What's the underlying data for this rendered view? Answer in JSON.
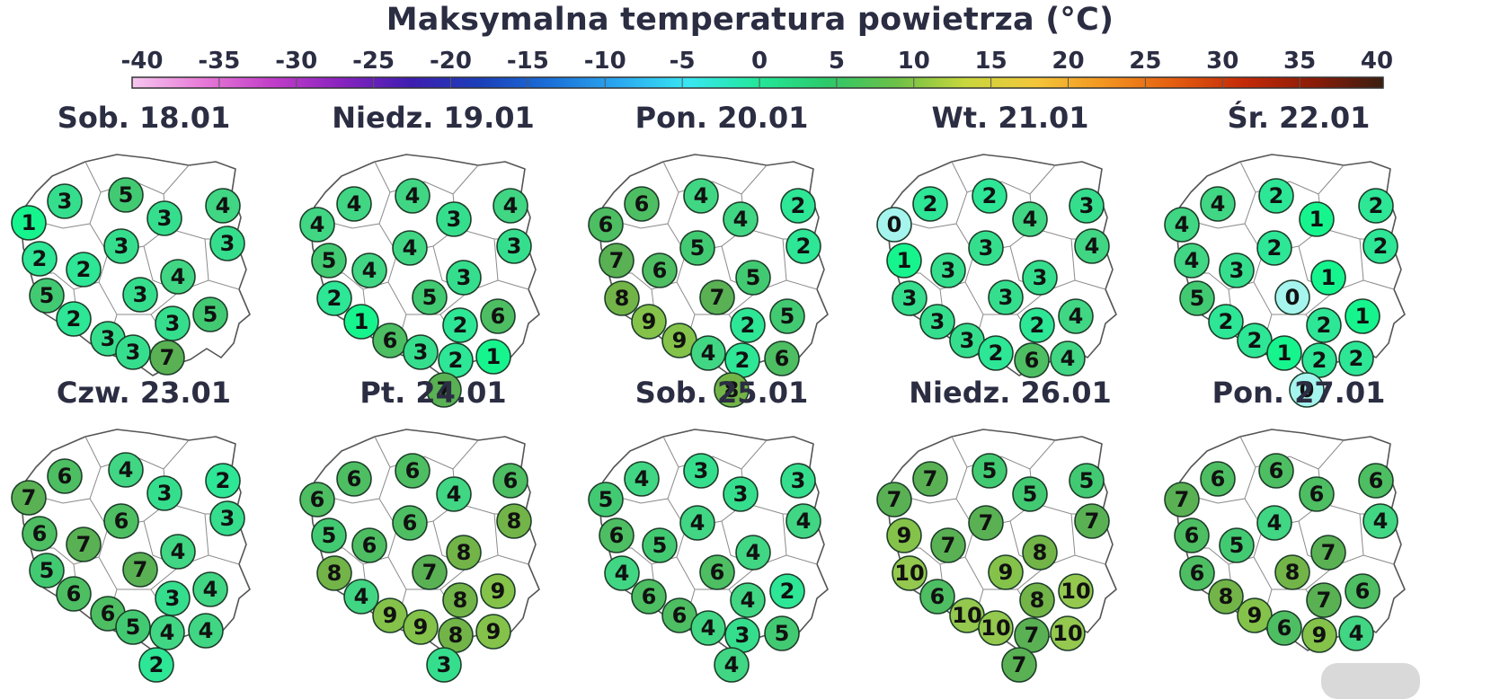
{
  "title": "Maksymalna temperatura powietrza (°C)",
  "scale": {
    "ticks": [
      "-40",
      "-35",
      "-30",
      "-25",
      "-20",
      "-15",
      "-10",
      "-5",
      "0",
      "5",
      "10",
      "15",
      "20",
      "25",
      "30",
      "35",
      "40"
    ],
    "min": -40,
    "max": 40,
    "gradient_colors": [
      "#f6c6ef",
      "#e87bd8",
      "#c23ec8",
      "#8a23c0",
      "#3f1db0",
      "#1b3fb8",
      "#1a6fd8",
      "#2aa8f0",
      "#38e6f2",
      "#22e89a",
      "#2cc96a",
      "#6cc046",
      "#c9d73c",
      "#f3c63a",
      "#f39420",
      "#e35d10",
      "#c42a08",
      "#8b1c08",
      "#3a1e10"
    ]
  },
  "station_colors": {
    "0": "#a6f4ee",
    "1": "#16f48e",
    "2": "#2de696",
    "3": "#35de8d",
    "4": "#40d683",
    "5": "#42ca72",
    "6": "#4dbe62",
    "7": "#59b153",
    "8": "#72b447",
    "9": "#84c24a",
    "10": "#94c84e"
  },
  "days": [
    {
      "label": "Sob. 18.01",
      "values": [
        "1",
        "3",
        "5",
        "3",
        "4",
        "3",
        "2",
        "2",
        "3",
        "4",
        "3",
        "5",
        "3",
        "5",
        "2",
        "3",
        "3",
        "7"
      ]
    },
    {
      "label": "Niedz. 19.01",
      "values": [
        "4",
        "4",
        "4",
        "3",
        "4",
        "3",
        "5",
        "4",
        "4",
        "3",
        "5",
        "2",
        "6",
        "1",
        "2",
        "6",
        "3",
        "2",
        "1",
        "7"
      ]
    },
    {
      "label": "Pon. 20.01",
      "values": [
        "6",
        "6",
        "4",
        "4",
        "2",
        "2",
        "5",
        "7",
        "6",
        "5",
        "8",
        "7",
        "2",
        "5",
        "9",
        "9",
        "4",
        "2",
        "6",
        "8"
      ]
    },
    {
      "label": "Wt. 21.01",
      "values": [
        "0",
        "2",
        "2",
        "4",
        "3",
        "3",
        "4",
        "1",
        "3",
        "3",
        "3",
        "3",
        "2",
        "4",
        "3",
        "3",
        "2",
        "6",
        "4"
      ]
    },
    {
      "label": "Śr. 22.01",
      "values": [
        "4",
        "4",
        "2",
        "1",
        "2",
        "2",
        "2",
        "4",
        "3",
        "1",
        "5",
        "0",
        "2",
        "1",
        "2",
        "2",
        "1",
        "2",
        "2",
        "0"
      ]
    },
    {
      "label": "Czw. 23.01",
      "values": [
        "7",
        "6",
        "4",
        "3",
        "2",
        "3",
        "6",
        "7",
        "6",
        "4",
        "7",
        "5",
        "3",
        "4",
        "6",
        "6",
        "5",
        "4",
        "4",
        "2"
      ]
    },
    {
      "label": "Pt. 24.01",
      "values": [
        "6",
        "6",
        "6",
        "4",
        "6",
        "8",
        "5",
        "6",
        "6",
        "8",
        "7",
        "8",
        "9",
        "4",
        "8",
        "9",
        "9",
        "8",
        "9",
        "3"
      ]
    },
    {
      "label": "Sob. 25.01",
      "values": [
        "5",
        "4",
        "3",
        "3",
        "3",
        "4",
        "4",
        "6",
        "5",
        "4",
        "4",
        "6",
        "4",
        "2",
        "6",
        "6",
        "4",
        "3",
        "5",
        "4"
      ]
    },
    {
      "label": "Niedz. 26.01",
      "values": [
        "7",
        "7",
        "5",
        "5",
        "5",
        "7",
        "7",
        "9",
        "7",
        "8",
        "10",
        "9",
        "8",
        "10",
        "6",
        "10",
        "10",
        "7",
        "10",
        "7"
      ]
    },
    {
      "label": "Pon. 27.01",
      "values": [
        "7",
        "6",
        "6",
        "6",
        "6",
        "4",
        "4",
        "6",
        "5",
        "7",
        "6",
        "8",
        "7",
        "6",
        "8",
        "9",
        "6",
        "9",
        "4"
      ]
    }
  ]
}
